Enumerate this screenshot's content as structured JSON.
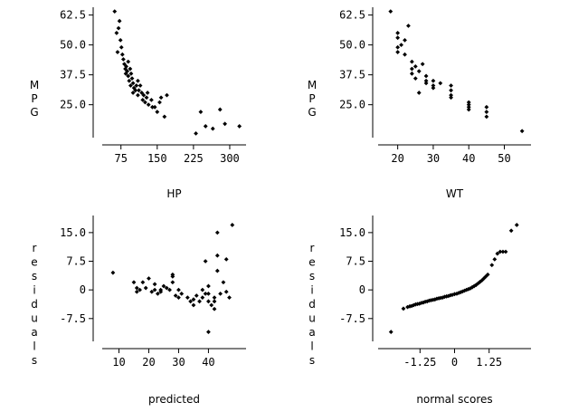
{
  "chart_data": [
    {
      "type": "scatter",
      "name": "mpg-vs-hp",
      "xlabel": "HP",
      "ylabel": "MPG",
      "xlim": [
        40,
        330
      ],
      "ylim": [
        12,
        65
      ],
      "xticks": [
        "75",
        "150",
        "225",
        "300"
      ],
      "yticks": [
        "62.5",
        "50.0",
        "37.5",
        "25.0"
      ],
      "points": [
        [
          62,
          64
        ],
        [
          66,
          55
        ],
        [
          70,
          57
        ],
        [
          72,
          60
        ],
        [
          68,
          47
        ],
        [
          74,
          52
        ],
        [
          76,
          49
        ],
        [
          78,
          46
        ],
        [
          80,
          44
        ],
        [
          82,
          42
        ],
        [
          84,
          40
        ],
        [
          85,
          38
        ],
        [
          86,
          41
        ],
        [
          88,
          39
        ],
        [
          90,
          37
        ],
        [
          90,
          43
        ],
        [
          92,
          35
        ],
        [
          94,
          40
        ],
        [
          95,
          33
        ],
        [
          96,
          38
        ],
        [
          98,
          36
        ],
        [
          100,
          34
        ],
        [
          100,
          30
        ],
        [
          102,
          32
        ],
        [
          105,
          31
        ],
        [
          107,
          33
        ],
        [
          110,
          29
        ],
        [
          110,
          35
        ],
        [
          112,
          31
        ],
        [
          115,
          33
        ],
        [
          118,
          30
        ],
        [
          120,
          27
        ],
        [
          122,
          29
        ],
        [
          125,
          26
        ],
        [
          128,
          28
        ],
        [
          130,
          30
        ],
        [
          132,
          25
        ],
        [
          138,
          27
        ],
        [
          140,
          24
        ],
        [
          145,
          24
        ],
        [
          150,
          22
        ],
        [
          155,
          26
        ],
        [
          158,
          28
        ],
        [
          165,
          20
        ],
        [
          170,
          29
        ],
        [
          230,
          13
        ],
        [
          240,
          22
        ],
        [
          250,
          16
        ],
        [
          265,
          15
        ],
        [
          280,
          23
        ],
        [
          290,
          17
        ],
        [
          320,
          16
        ]
      ]
    },
    {
      "type": "scatter",
      "name": "mpg-vs-wt",
      "xlabel": "WT",
      "ylabel": "MPG",
      "xlim": [
        15,
        57
      ],
      "ylim": [
        12,
        65
      ],
      "xticks": [
        "20",
        "30",
        "40",
        "50"
      ],
      "yticks": [
        "62.5",
        "50.0",
        "37.5",
        "25.0"
      ],
      "points": [
        [
          18,
          64
        ],
        [
          20,
          55
        ],
        [
          20,
          53
        ],
        [
          20,
          49
        ],
        [
          20,
          47
        ],
        [
          21,
          50
        ],
        [
          22,
          52
        ],
        [
          22,
          46
        ],
        [
          23,
          58
        ],
        [
          24,
          40
        ],
        [
          24,
          38
        ],
        [
          24,
          43
        ],
        [
          25,
          41
        ],
        [
          25,
          36
        ],
        [
          26,
          39
        ],
        [
          26,
          30
        ],
        [
          27,
          42
        ],
        [
          28,
          35
        ],
        [
          28,
          37
        ],
        [
          28,
          34
        ],
        [
          30,
          33
        ],
        [
          30,
          32
        ],
        [
          30,
          35
        ],
        [
          32,
          34
        ],
        [
          35,
          31
        ],
        [
          35,
          33
        ],
        [
          35,
          29
        ],
        [
          35,
          28
        ],
        [
          40,
          26
        ],
        [
          40,
          25
        ],
        [
          40,
          24
        ],
        [
          40,
          23
        ],
        [
          45,
          24
        ],
        [
          45,
          20
        ],
        [
          45,
          22
        ],
        [
          55,
          14
        ]
      ]
    },
    {
      "type": "scatter",
      "name": "residuals-vs-predicted",
      "xlabel": "predicted",
      "ylabel": "residuals",
      "xlim": [
        5,
        52
      ],
      "ylim": [
        -13,
        19
      ],
      "xticks": [
        "10",
        "20",
        "30",
        "40"
      ],
      "yticks": [
        "15.0",
        "7.5",
        "0",
        "-7.5"
      ],
      "points": [
        [
          8,
          4.5
        ],
        [
          15,
          2
        ],
        [
          16,
          0.5
        ],
        [
          16,
          -0.5
        ],
        [
          17,
          0
        ],
        [
          18,
          2
        ],
        [
          19,
          0.5
        ],
        [
          20,
          3
        ],
        [
          21,
          -0.5
        ],
        [
          22,
          1.5
        ],
        [
          22,
          0
        ],
        [
          23,
          -1
        ],
        [
          24,
          -0.5
        ],
        [
          24,
          0
        ],
        [
          25,
          1
        ],
        [
          26,
          0.5
        ],
        [
          27,
          0
        ],
        [
          28,
          2
        ],
        [
          28,
          3.5
        ],
        [
          28,
          4
        ],
        [
          29,
          -1.5
        ],
        [
          30,
          -2
        ],
        [
          30,
          0
        ],
        [
          31,
          -1
        ],
        [
          33,
          -2
        ],
        [
          34,
          -3
        ],
        [
          35,
          -2.5
        ],
        [
          35,
          -4
        ],
        [
          36,
          -1.5
        ],
        [
          37,
          -3
        ],
        [
          38,
          -2
        ],
        [
          38,
          0
        ],
        [
          39,
          -1
        ],
        [
          39,
          7.5
        ],
        [
          40,
          -11
        ],
        [
          40,
          -3
        ],
        [
          40,
          -1
        ],
        [
          40,
          1
        ],
        [
          41,
          -4
        ],
        [
          42,
          -3
        ],
        [
          42,
          -5
        ],
        [
          42,
          -2
        ],
        [
          43,
          5
        ],
        [
          43,
          9
        ],
        [
          43,
          15
        ],
        [
          44,
          -1
        ],
        [
          45,
          2
        ],
        [
          46,
          8
        ],
        [
          46,
          -0.5
        ],
        [
          47,
          -2
        ],
        [
          48,
          17
        ]
      ]
    },
    {
      "type": "scatter",
      "name": "residuals-vs-normal-scores",
      "xlabel": "normal scores",
      "ylabel": "residuals",
      "xlim": [
        -2.7,
        2.7
      ],
      "ylim": [
        -13,
        19
      ],
      "xticks": [
        "-1.25",
        "0",
        "1.25"
      ],
      "yticks": [
        "15.0",
        "7.5",
        "0",
        "-7.5"
      ],
      "points": [
        [
          -2.3,
          -11
        ],
        [
          -1.85,
          -4.9
        ],
        [
          -1.7,
          -4.5
        ],
        [
          -1.62,
          -4.3
        ],
        [
          -1.55,
          -4.2
        ],
        [
          -1.48,
          -4.0
        ],
        [
          -1.41,
          -3.8
        ],
        [
          -1.34,
          -3.7
        ],
        [
          -1.27,
          -3.6
        ],
        [
          -1.2,
          -3.4
        ],
        [
          -1.13,
          -3.3
        ],
        [
          -1.06,
          -3.1
        ],
        [
          -0.99,
          -3.0
        ],
        [
          -0.92,
          -2.8
        ],
        [
          -0.85,
          -2.7
        ],
        [
          -0.78,
          -2.6
        ],
        [
          -0.71,
          -2.5
        ],
        [
          -0.64,
          -2.3
        ],
        [
          -0.57,
          -2.2
        ],
        [
          -0.5,
          -2.1
        ],
        [
          -0.43,
          -2.0
        ],
        [
          -0.36,
          -1.8
        ],
        [
          -0.29,
          -1.7
        ],
        [
          -0.22,
          -1.6
        ],
        [
          -0.15,
          -1.4
        ],
        [
          -0.08,
          -1.3
        ],
        [
          0.0,
          -1.1
        ],
        [
          0.08,
          -1.0
        ],
        [
          0.15,
          -0.8
        ],
        [
          0.22,
          -0.6
        ],
        [
          0.29,
          -0.4
        ],
        [
          0.36,
          -0.2
        ],
        [
          0.43,
          0.0
        ],
        [
          0.5,
          0.2
        ],
        [
          0.57,
          0.4
        ],
        [
          0.64,
          0.7
        ],
        [
          0.71,
          1.0
        ],
        [
          0.78,
          1.3
        ],
        [
          0.85,
          1.7
        ],
        [
          0.92,
          2.1
        ],
        [
          0.99,
          2.5
        ],
        [
          1.06,
          3.0
        ],
        [
          1.13,
          3.5
        ],
        [
          1.2,
          4.0
        ],
        [
          1.35,
          6.5
        ],
        [
          1.45,
          8.0
        ],
        [
          1.55,
          9.5
        ],
        [
          1.65,
          10.0
        ],
        [
          1.75,
          10.0
        ],
        [
          1.85,
          10.0
        ],
        [
          2.05,
          15.5
        ],
        [
          2.25,
          17.0
        ]
      ]
    }
  ]
}
